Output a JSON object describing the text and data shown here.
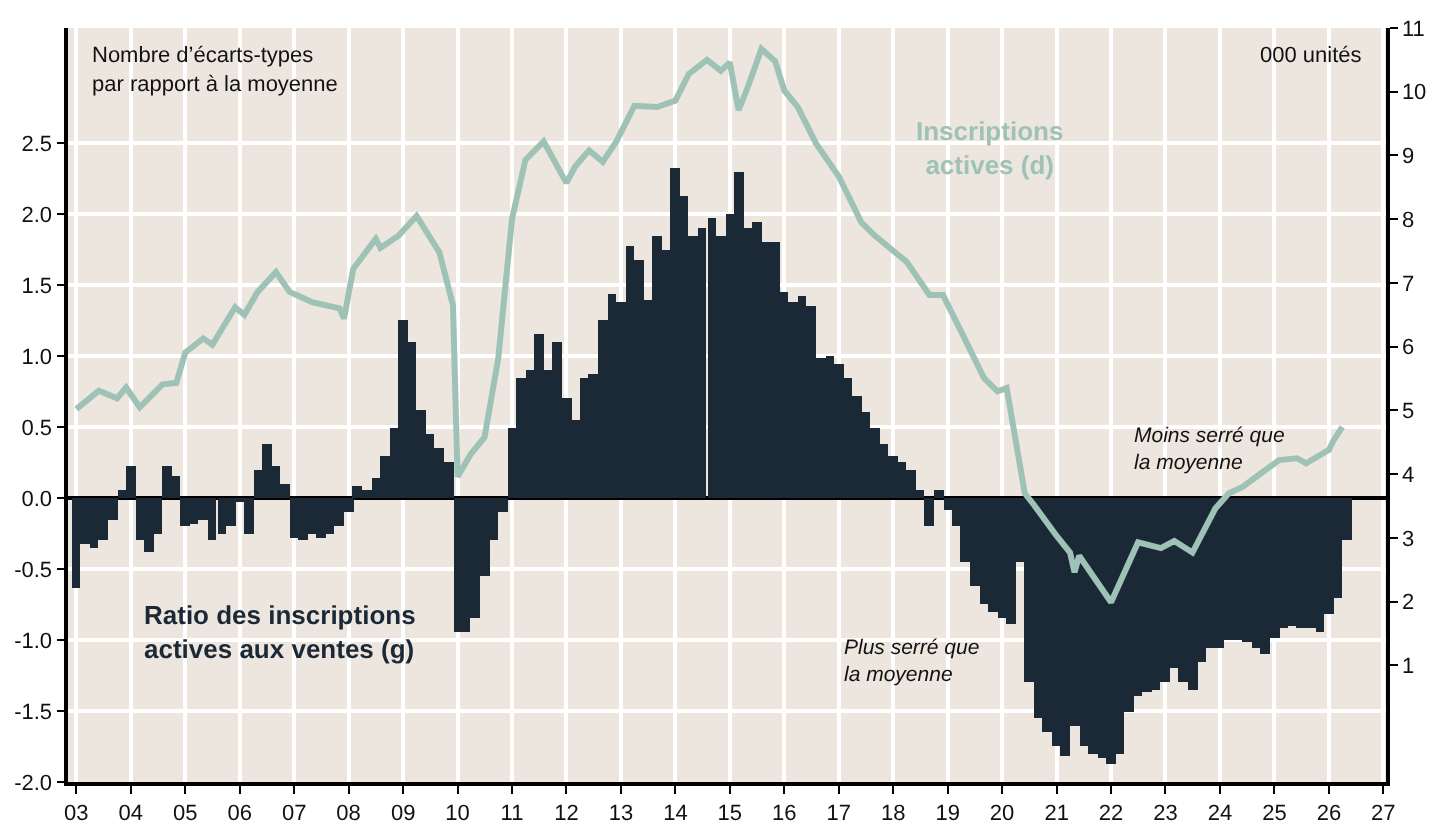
{
  "chart_data": {
    "type": "bar",
    "ylabel": "Nombre d’écarts-types\npar rapport à la moyenne",
    "y2label": "000 unités",
    "annotations": [
      "Moins serré que\nla moyenne",
      "Plus serré que\nla moyenne"
    ],
    "x": [
      "2003-01",
      "2003-03",
      "2003-05",
      "2003-07",
      "2003-09",
      "2003-11",
      "2004-01",
      "2004-03",
      "2004-05",
      "2004-07",
      "2004-09",
      "2004-11",
      "2005-01",
      "2005-03",
      "2005-05",
      "2005-07",
      "2005-09",
      "2005-11",
      "2006-01",
      "2006-03",
      "2006-05",
      "2006-07",
      "2006-09",
      "2006-11",
      "2007-01",
      "2007-03",
      "2007-05",
      "2007-07",
      "2007-09",
      "2007-11",
      "2008-01",
      "2008-03",
      "2008-05",
      "2008-07",
      "2008-09",
      "2008-11",
      "2009-01",
      "2009-03",
      "2009-05",
      "2009-07",
      "2009-09",
      "2009-11",
      "2010-01",
      "2010-03",
      "2010-05",
      "2010-07",
      "2010-09",
      "2010-11",
      "2011-01",
      "2011-03",
      "2011-05",
      "2011-07",
      "2011-09",
      "2011-11",
      "2012-01",
      "2012-03",
      "2012-05",
      "2012-07",
      "2012-09",
      "2012-11",
      "2013-01",
      "2013-03",
      "2013-05",
      "2013-07",
      "2013-09",
      "2013-11",
      "2014-01",
      "2014-03",
      "2014-05",
      "2014-07",
      "2014-09",
      "2014-11",
      "2015-01",
      "2015-03",
      "2015-05",
      "2015-07",
      "2015-09",
      "2015-11",
      "2016-01",
      "2016-03",
      "2016-05",
      "2016-07",
      "2016-09",
      "2016-11",
      "2017-01",
      "2017-03",
      "2017-05",
      "2017-07",
      "2017-09",
      "2017-11",
      "2018-01",
      "2018-03",
      "2018-05",
      "2018-07",
      "2018-09",
      "2018-11",
      "2019-01",
      "2019-03",
      "2019-05",
      "2019-07",
      "2019-09",
      "2019-11",
      "2020-01",
      "2020-03",
      "2020-05",
      "2020-07",
      "2020-09",
      "2020-11",
      "2021-01",
      "2021-03",
      "2021-05",
      "2021-07",
      "2021-09",
      "2021-11",
      "2022-01",
      "2022-03",
      "2022-05",
      "2022-07",
      "2022-09",
      "2022-11",
      "2023-01",
      "2023-03",
      "2023-05",
      "2023-07",
      "2023-09",
      "2023-11",
      "2024-01",
      "2024-03",
      "2024-05",
      "2024-07",
      "2024-09",
      "2024-11",
      "2025-01",
      "2025-03",
      "2025-05",
      "2025-07",
      "2025-09",
      "2025-11",
      "2026-01",
      "2026-03",
      "2026-05"
    ],
    "series": [
      {
        "name": "Ratio des inscriptions actives aux ventes (g)",
        "color": "#1b2836",
        "values": [
          -0.64,
          -0.33,
          -0.35,
          -0.3,
          -0.15,
          0.05,
          0.22,
          -0.3,
          -0.38,
          -0.25,
          0.22,
          0.15,
          -0.2,
          -0.18,
          -0.15,
          -0.3,
          -0.25,
          -0.2,
          -0.02,
          -0.25,
          0.2,
          0.38,
          0.22,
          0.1,
          -0.28,
          -0.3,
          -0.25,
          -0.28,
          -0.25,
          -0.2,
          -0.1,
          0.08,
          0.05,
          0.14,
          0.3,
          0.5,
          1.25,
          1.1,
          0.62,
          0.45,
          0.35,
          0.25,
          -0.95,
          -0.95,
          -0.85,
          -0.55,
          -0.3,
          -0.1,
          0.5,
          0.85,
          0.9,
          1.15,
          0.9,
          1.1,
          0.7,
          0.55,
          0.85,
          0.87,
          1.25,
          1.43,
          1.38,
          1.78,
          1.68,
          1.4,
          1.85,
          1.75,
          2.32,
          2.12,
          1.85,
          1.9,
          1.97,
          1.85,
          2.0,
          2.3,
          1.9,
          1.95,
          1.8,
          1.8,
          1.45,
          1.38,
          1.42,
          1.35,
          0.98,
          1.0,
          0.95,
          0.85,
          0.72,
          0.6,
          0.5,
          0.38,
          0.3,
          0.25,
          0.2,
          0.05,
          -0.2,
          0.05,
          -0.08,
          -0.2,
          -0.45,
          -0.62,
          -0.75,
          -0.8,
          -0.85,
          -0.89,
          -0.45,
          -1.3,
          -1.55,
          -1.65,
          -1.75,
          -1.82,
          -1.6,
          -1.75,
          -1.8,
          -1.83,
          -1.87,
          -1.8,
          -1.5,
          -1.4,
          -1.37,
          -1.35,
          -1.3,
          -1.2,
          -1.3,
          -1.35,
          -1.15,
          -1.05,
          -1.05,
          -1.0,
          -1.0,
          -1.02,
          -1.05,
          -1.1,
          -0.98,
          -0.92,
          -0.9,
          -0.92,
          -0.92,
          -0.95,
          -0.82,
          -0.7,
          -0.3
        ]
      },
      {
        "name": "Inscriptions actives (d)",
        "type": "line",
        "axis": "y2",
        "color": "#9fc2b6",
        "x": [
          "2003-01",
          "2003-06",
          "2003-10",
          "2003-12",
          "2004-03",
          "2004-08",
          "2004-11",
          "2005-01",
          "2005-05",
          "2005-07",
          "2005-12",
          "2006-02",
          "2006-05",
          "2006-09",
          "2006-12",
          "2007-05",
          "2007-11",
          "2007-12",
          "2008-02",
          "2008-07",
          "2008-08",
          "2008-12",
          "2009-04",
          "2009-09",
          "2009-12",
          "2010-01",
          "2010-04",
          "2010-07",
          "2010-10",
          "2011-01",
          "2011-04",
          "2011-08",
          "2012-01",
          "2012-03",
          "2012-06",
          "2012-09",
          "2012-12",
          "2013-04",
          "2013-09",
          "2014-01",
          "2014-04",
          "2014-08",
          "2014-11",
          "2015-01",
          "2015-03",
          "2015-05",
          "2015-08",
          "2015-11",
          "2016-01",
          "2016-04",
          "2016-08",
          "2017-01",
          "2017-06",
          "2017-09",
          "2018-04",
          "2018-09",
          "2018-12",
          "2019-04",
          "2019-09",
          "2019-12",
          "2020-02",
          "2020-06",
          "2020-08",
          "2021-01",
          "2021-04",
          "2021-05",
          "2021-06",
          "2022-01",
          "2022-07",
          "2022-12",
          "2023-03",
          "2023-07",
          "2023-12",
          "2024-03",
          "2024-06",
          "2024-10",
          "2025-02",
          "2025-06",
          "2025-08",
          "2026-01",
          "2026-02",
          "2026-04"
        ],
        "values": [
          5.02,
          5.31,
          5.19,
          5.36,
          5.05,
          5.41,
          5.43,
          5.91,
          6.13,
          6.03,
          6.62,
          6.5,
          6.86,
          7.17,
          6.86,
          6.7,
          6.6,
          6.44,
          7.22,
          7.69,
          7.55,
          7.74,
          8.05,
          7.48,
          6.65,
          3.96,
          4.32,
          4.58,
          5.82,
          8.0,
          8.93,
          9.22,
          8.57,
          8.83,
          9.08,
          8.9,
          9.22,
          9.78,
          9.76,
          9.86,
          10.28,
          10.5,
          10.33,
          10.46,
          9.71,
          10.07,
          10.67,
          10.48,
          10.02,
          9.76,
          9.19,
          8.67,
          7.95,
          7.74,
          7.33,
          6.81,
          6.81,
          6.24,
          5.51,
          5.3,
          5.35,
          3.7,
          3.52,
          3.03,
          2.77,
          2.46,
          2.72,
          1.99,
          2.93,
          2.84,
          2.95,
          2.77,
          3.46,
          3.7,
          3.8,
          4.01,
          4.22,
          4.25,
          4.17,
          4.38,
          4.53,
          4.74
        ]
      }
    ],
    "xlim": [
      "2002-11-06",
      "2027-01-19"
    ],
    "xticks": [
      {
        "value": "2003-01-01",
        "label": "03"
      },
      {
        "value": "2004-01-01",
        "label": "04"
      },
      {
        "value": "2005-01-01",
        "label": "05"
      },
      {
        "value": "2006-01-01",
        "label": "06"
      },
      {
        "value": "2007-01-01",
        "label": "07"
      },
      {
        "value": "2008-01-01",
        "label": "08"
      },
      {
        "value": "2009-01-01",
        "label": "09"
      },
      {
        "value": "2010-01-01",
        "label": "10"
      },
      {
        "value": "2011-01-01",
        "label": "11"
      },
      {
        "value": "2012-01-01",
        "label": "12"
      },
      {
        "value": "2013-01-01",
        "label": "13"
      },
      {
        "value": "2014-01-01",
        "label": "14"
      },
      {
        "value": "2015-01-01",
        "label": "15"
      },
      {
        "value": "2016-01-01",
        "label": "16"
      },
      {
        "value": "2017-01-01",
        "label": "17"
      },
      {
        "value": "2018-01-01",
        "label": "18"
      },
      {
        "value": "2019-01-01",
        "label": "19"
      },
      {
        "value": "2020-01-01",
        "label": "20"
      },
      {
        "value": "2021-01-01",
        "label": "21"
      },
      {
        "value": "2022-01-01",
        "label": "22"
      },
      {
        "value": "2023-01-01",
        "label": "23"
      },
      {
        "value": "2024-01-01",
        "label": "24"
      },
      {
        "value": "2025-01-01",
        "label": "25"
      },
      {
        "value": "2026-01-01",
        "label": "26"
      },
      {
        "value": "2027-01-01",
        "label": "27"
      }
    ],
    "ylim": [
      -2.0,
      3.31
    ],
    "yticks": [
      {
        "value": -2,
        "label": "-2.0"
      },
      {
        "value": -1.5,
        "label": "-1.5"
      },
      {
        "value": -1,
        "label": "-1.0"
      },
      {
        "value": -0.5,
        "label": "-0.5"
      },
      {
        "value": 0,
        "label": "0.0"
      },
      {
        "value": 0.5,
        "label": "0.5"
      },
      {
        "value": 1,
        "label": "1.0"
      },
      {
        "value": 1.5,
        "label": "1.5"
      },
      {
        "value": 2,
        "label": "2.0"
      },
      {
        "value": 2.5,
        "label": "2.5"
      }
    ],
    "y2lim": [
      -0.83,
      11.0
    ],
    "y2ticks": [
      1,
      2,
      3,
      4,
      5,
      6,
      7,
      8,
      9,
      10,
      11
    ],
    "grid": true,
    "legend": false
  }
}
